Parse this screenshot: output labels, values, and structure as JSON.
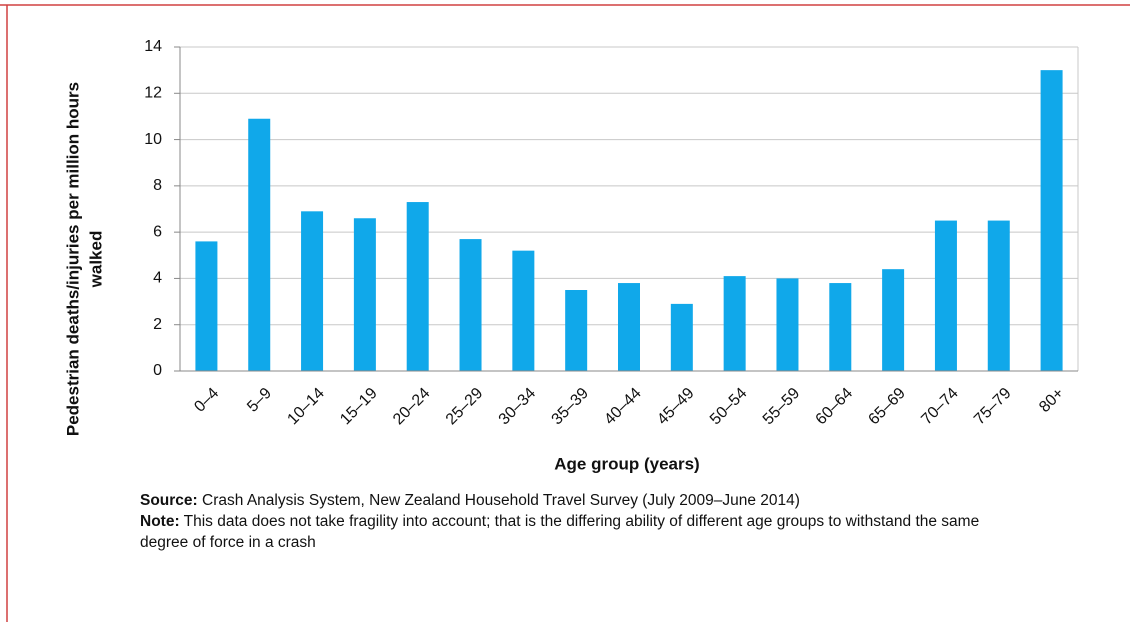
{
  "chart_data": {
    "type": "bar",
    "categories": [
      "0–4",
      "5–9",
      "10–14",
      "15–19",
      "20–24",
      "25–29",
      "30–34",
      "35–39",
      "40–44",
      "45–49",
      "50–54",
      "55–59",
      "60–64",
      "65–69",
      "70–74",
      "75–79",
      "80+"
    ],
    "values": [
      5.6,
      10.9,
      6.9,
      6.6,
      7.3,
      5.7,
      5.2,
      3.5,
      3.8,
      2.9,
      4.1,
      4.0,
      3.8,
      4.4,
      6.5,
      6.5,
      13.0
    ],
    "color": "#10a8ea",
    "ylim": [
      0,
      14
    ],
    "yticks": [
      0,
      2,
      4,
      6,
      8,
      10,
      12,
      14
    ],
    "grid": true,
    "y_label": [
      "Pedestrian deaths/injuries per million hours",
      "walked"
    ],
    "x_label": "Age group (years)",
    "notes": [
      {
        "label": "Source:",
        "text": "Crash Analysis System, New Zealand Household Travel Survey (July 2009–June 2014)"
      },
      {
        "label": "Note:",
        "text": "This data does not take fragility into account; that is the differing ability of different age groups to withstand the same degree of force in a crash"
      }
    ]
  }
}
